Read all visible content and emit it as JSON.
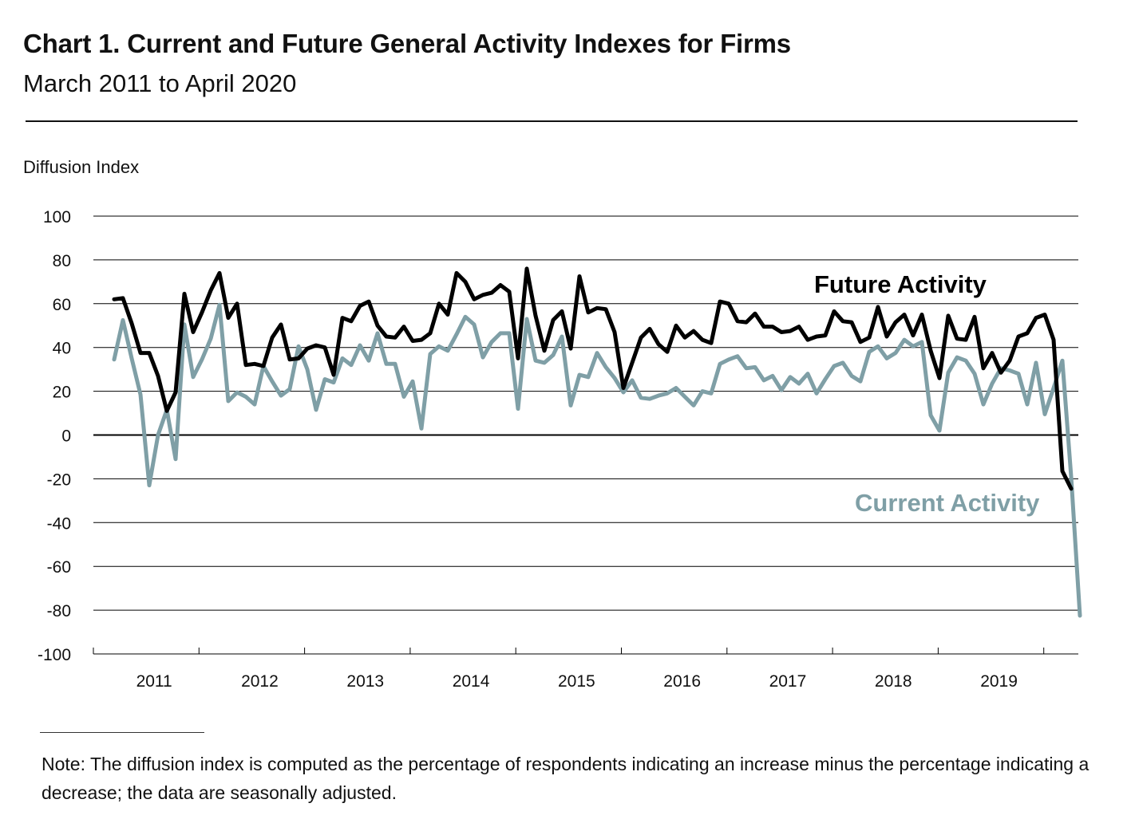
{
  "chart_data": {
    "type": "line",
    "title": "Chart 1. Current and Future General Activity Indexes for Firms",
    "subtitle": "March 2011 to April 2020",
    "ylabel": "Diffusion Index",
    "ylim": [
      -100,
      100
    ],
    "yticks": [
      100,
      80,
      60,
      40,
      20,
      0,
      -20,
      -40,
      -60,
      -80,
      -100
    ],
    "x_start": "2011-03",
    "x_end": "2020-04",
    "xtick_labels": [
      "2011",
      "2012",
      "2013",
      "2014",
      "2015",
      "2016",
      "2017",
      "2018",
      "2019"
    ],
    "grid": true,
    "series": [
      {
        "name": "Future Activity",
        "color": "#000000",
        "values": [
          62,
          62.5,
          51,
          37.5,
          37.5,
          27,
          11,
          19.5,
          64.5,
          47,
          56,
          66,
          74,
          53.5,
          60,
          32,
          32.5,
          31.5,
          44.5,
          50.5,
          34.5,
          35,
          39.5,
          41,
          40,
          27.5,
          53.5,
          52,
          59,
          61,
          50,
          45,
          44.5,
          49.5,
          43,
          43.5,
          46.5,
          60,
          55,
          74,
          70,
          62,
          64,
          65,
          68.5,
          65.5,
          35,
          76,
          54.5,
          38.5,
          52.5,
          56.5,
          39.5,
          72.5,
          56,
          58,
          57.5,
          47,
          21.5,
          33,
          44.5,
          48.5,
          41.5,
          38,
          50,
          44.5,
          47.5,
          43.5,
          42,
          61,
          60,
          52,
          51.5,
          55.5,
          49.5,
          49.5,
          47,
          47.5,
          49.5,
          43.5,
          45,
          45.5,
          56.5,
          52,
          51.5,
          42.5,
          44.5,
          58.5,
          45,
          51.5,
          55,
          45.5,
          55,
          38.5,
          26,
          54.5,
          44,
          43.5,
          54,
          30.5,
          37.5,
          28.5,
          34,
          45,
          46.5,
          53.5,
          55,
          43.5,
          -16.5,
          -24.5
        ]
      },
      {
        "name": "Current Activity",
        "color": "#7f9fa6",
        "values": [
          34.5,
          52.5,
          35,
          18.5,
          -23,
          0,
          11.5,
          -11,
          50.5,
          26.5,
          34.5,
          44,
          59.5,
          15.5,
          19.5,
          17.5,
          14,
          31.5,
          24.5,
          18,
          21,
          40.5,
          30,
          11.5,
          25.5,
          24,
          35,
          32,
          41,
          34,
          46.5,
          32.5,
          32.5,
          17.5,
          24.5,
          3,
          37,
          40.5,
          38.5,
          46,
          54,
          50.5,
          35.5,
          42.5,
          46.5,
          46.5,
          12,
          53,
          34,
          33,
          36.5,
          45,
          13.5,
          27.5,
          26.5,
          37.5,
          31,
          26,
          19.5,
          25,
          17,
          16.5,
          18,
          19,
          21.5,
          17.5,
          13.5,
          20,
          19,
          32.5,
          34.5,
          36,
          30.5,
          31,
          25,
          27,
          20.5,
          26.5,
          23.5,
          28,
          19,
          25.5,
          31.5,
          33,
          27,
          24.5,
          38,
          40.5,
          35,
          37.5,
          43.5,
          40.5,
          42.5,
          9,
          2,
          28.5,
          35.5,
          34,
          28,
          14,
          23.5,
          30.5,
          29.5,
          28,
          14,
          33,
          9.5,
          21.5,
          34,
          -19,
          -82.5
        ]
      }
    ]
  },
  "labels": {
    "future": "Future Activity",
    "current": "Current Activity"
  },
  "note": "Note:  The diffusion index is computed as the percentage of respondents indicating an increase minus the percentage indicating a decrease; the data are seasonally adjusted."
}
